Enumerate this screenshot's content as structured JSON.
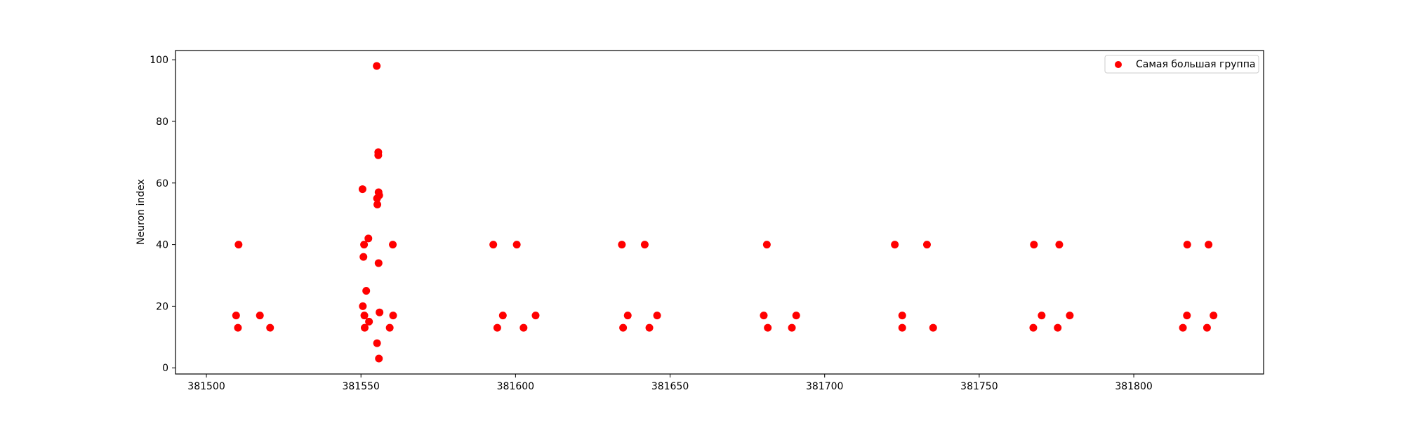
{
  "chart_data": {
    "type": "scatter",
    "title": "",
    "xlabel": "",
    "ylabel": "Neuron index",
    "xlim": [
      381490,
      381842
    ],
    "ylim": [
      -2,
      103
    ],
    "xticks": [
      381500,
      381550,
      381600,
      381650,
      381700,
      381750,
      381800
    ],
    "yticks": [
      0,
      20,
      40,
      60,
      80,
      100
    ],
    "grid": false,
    "legend": {
      "placement": "top-right",
      "entries": [
        "Самая большая группа"
      ]
    },
    "series": [
      {
        "name": "Самая большая группа",
        "color": "#ff0000",
        "marker": "circle",
        "points": [
          {
            "x": 381509.6,
            "y": 17
          },
          {
            "x": 381510.2,
            "y": 13
          },
          {
            "x": 381510.4,
            "y": 40
          },
          {
            "x": 381517.3,
            "y": 17
          },
          {
            "x": 381520.6,
            "y": 13
          },
          {
            "x": 381550.5,
            "y": 58
          },
          {
            "x": 381550.6,
            "y": 20
          },
          {
            "x": 381551.0,
            "y": 40
          },
          {
            "x": 381551.1,
            "y": 17
          },
          {
            "x": 381550.8,
            "y": 36
          },
          {
            "x": 381551.2,
            "y": 13
          },
          {
            "x": 381551.7,
            "y": 25
          },
          {
            "x": 381552.4,
            "y": 42
          },
          {
            "x": 381552.6,
            "y": 15
          },
          {
            "x": 381555.1,
            "y": 98
          },
          {
            "x": 381555.2,
            "y": 55
          },
          {
            "x": 381555.3,
            "y": 53
          },
          {
            "x": 381555.2,
            "y": 8
          },
          {
            "x": 381555.6,
            "y": 70
          },
          {
            "x": 381555.6,
            "y": 69
          },
          {
            "x": 381555.7,
            "y": 57
          },
          {
            "x": 381555.9,
            "y": 56
          },
          {
            "x": 381555.7,
            "y": 34
          },
          {
            "x": 381556.0,
            "y": 18
          },
          {
            "x": 381555.8,
            "y": 3
          },
          {
            "x": 381559.3,
            "y": 13
          },
          {
            "x": 381560.3,
            "y": 40
          },
          {
            "x": 381560.4,
            "y": 17
          },
          {
            "x": 381592.8,
            "y": 40
          },
          {
            "x": 381594.1,
            "y": 13
          },
          {
            "x": 381595.9,
            "y": 17
          },
          {
            "x": 381600.4,
            "y": 40
          },
          {
            "x": 381602.6,
            "y": 13
          },
          {
            "x": 381606.5,
            "y": 17
          },
          {
            "x": 381634.4,
            "y": 40
          },
          {
            "x": 381634.8,
            "y": 13
          },
          {
            "x": 381636.3,
            "y": 17
          },
          {
            "x": 381641.8,
            "y": 40
          },
          {
            "x": 381643.3,
            "y": 13
          },
          {
            "x": 381645.8,
            "y": 17
          },
          {
            "x": 381680.3,
            "y": 17
          },
          {
            "x": 381681.3,
            "y": 40
          },
          {
            "x": 381681.6,
            "y": 13
          },
          {
            "x": 381689.4,
            "y": 13
          },
          {
            "x": 381690.8,
            "y": 17
          },
          {
            "x": 381722.7,
            "y": 40
          },
          {
            "x": 381725.1,
            "y": 17
          },
          {
            "x": 381725.1,
            "y": 13
          },
          {
            "x": 381733.1,
            "y": 40
          },
          {
            "x": 381735.1,
            "y": 13
          },
          {
            "x": 381767.5,
            "y": 13
          },
          {
            "x": 381767.7,
            "y": 40
          },
          {
            "x": 381770.2,
            "y": 17
          },
          {
            "x": 381775.4,
            "y": 13
          },
          {
            "x": 381775.9,
            "y": 40
          },
          {
            "x": 381779.3,
            "y": 17
          },
          {
            "x": 381815.9,
            "y": 13
          },
          {
            "x": 381817.2,
            "y": 17
          },
          {
            "x": 381817.3,
            "y": 40
          },
          {
            "x": 381823.7,
            "y": 13
          },
          {
            "x": 381824.2,
            "y": 40
          },
          {
            "x": 381825.8,
            "y": 17
          }
        ]
      }
    ]
  }
}
